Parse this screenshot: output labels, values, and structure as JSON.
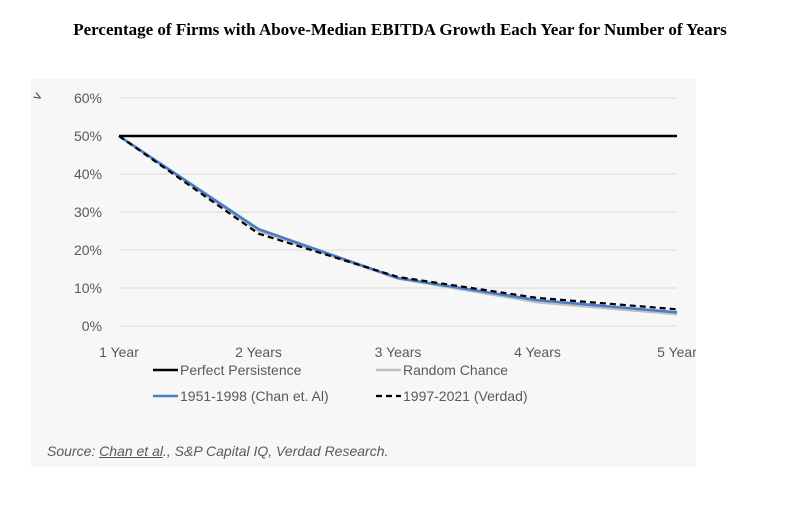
{
  "title": "Percentage of Firms with Above-Median EBITDA Growth Each Year for Number of Years",
  "chart_data": {
    "type": "line",
    "title": "Percentage of Firms with Above-Median EBITDA Growth Each Year for Number of Years",
    "xlabel": "",
    "ylabel": "",
    "categories": [
      "1 Year",
      "2 Years",
      "3 Years",
      "4 Years",
      "5 Year"
    ],
    "y_ticks": [
      "0%",
      "10%",
      "20%",
      "30%",
      "40%",
      "50%",
      "60%"
    ],
    "ylim": [
      0,
      60
    ],
    "grid": true,
    "legend_position": "bottom",
    "series": [
      {
        "name": "Perfect Persistence",
        "values": [
          50,
          50,
          50,
          50,
          50
        ],
        "color": "#000000",
        "style": "solid"
      },
      {
        "name": "Random Chance",
        "values": [
          50,
          25,
          12.5,
          6.25,
          3.125
        ],
        "color": "#bfbfbf",
        "style": "solid"
      },
      {
        "name": "1951-1998 (Chan et. Al)",
        "values": [
          50,
          25.5,
          12.6,
          6.8,
          3.6
        ],
        "color": "#4a7cc7",
        "style": "solid"
      },
      {
        "name": "1997-2021 (Verdad)",
        "values": [
          50,
          24.3,
          12.9,
          7.4,
          4.4
        ],
        "color": "#000000",
        "style": "dashed"
      }
    ],
    "corner_mark": "v"
  },
  "source": {
    "prefix": "Source: ",
    "link": "Chan et al",
    "rest": "., S&P Capital IQ, Verdad Research."
  }
}
